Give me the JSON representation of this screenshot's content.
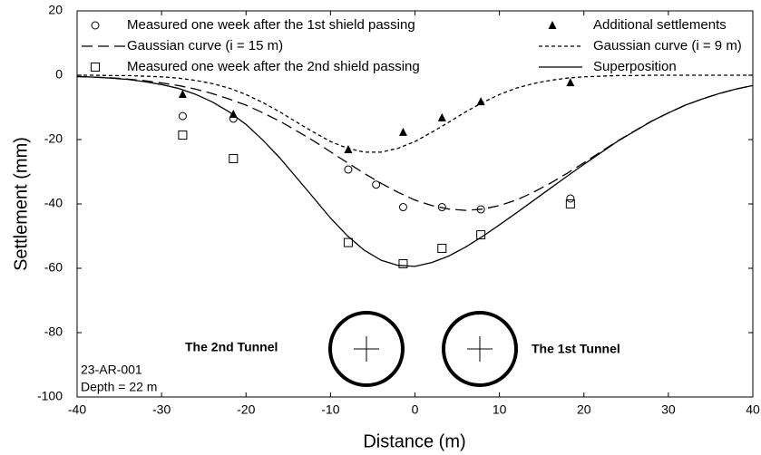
{
  "chart_data": {
    "type": "line",
    "xlabel": "Distance (m)",
    "ylabel": "Settlement (mm)",
    "xlim": [
      -40,
      40
    ],
    "ylim": [
      -100,
      20
    ],
    "xticks": [
      -40,
      -30,
      -20,
      -10,
      0,
      10,
      20,
      30,
      40
    ],
    "yticks": [
      -100,
      -80,
      -60,
      -40,
      -20,
      0,
      20
    ],
    "annotations": [
      "The 2nd Tunnel",
      "The 1st Tunnel",
      "23-AR-001",
      "Depth = 22 m"
    ],
    "series": [
      {
        "name": "Measured one week after the 1st shield passing",
        "color": "#000000",
        "marker": "circle",
        "x": [
          -27.5,
          -21.5,
          -7.9,
          -4.6,
          -1.4,
          3.2,
          7.8,
          18.4
        ],
        "values": [
          -12.7,
          -13.5,
          -29.3,
          -34,
          -41,
          -41,
          -41.7,
          -38.3
        ]
      },
      {
        "name": "Additional settlements",
        "color": "#000000",
        "marker": "triangle",
        "x": [
          -27.5,
          -21.5,
          -7.9,
          -1.4,
          3.2,
          7.8,
          18.4
        ],
        "values": [
          -5.9,
          -12.1,
          -23.1,
          -17.7,
          -13.2,
          -8.2,
          -2.3
        ]
      },
      {
        "name": "Gaussian curve (i = 15 m)",
        "color": "#000000",
        "dash": "long",
        "x": [
          -40,
          -38,
          -36,
          -34,
          -32,
          -30,
          -28,
          -26,
          -24,
          -22,
          -20,
          -18,
          -16,
          -14,
          -12,
          -10,
          -8,
          -6,
          -4,
          -2,
          0,
          2,
          4,
          6,
          8,
          10,
          12,
          14,
          16,
          18,
          20,
          22,
          24,
          26,
          28,
          30,
          32,
          34,
          36,
          38,
          40
        ],
        "values": [
          -0.4,
          -0.6,
          -0.8,
          -1.2,
          -1.7,
          -2.4,
          -3.2,
          -4.3,
          -5.7,
          -7.4,
          -9.3,
          -11.7,
          -14.3,
          -17.3,
          -20.4,
          -23.8,
          -27.2,
          -30.5,
          -33.6,
          -36.4,
          -38.8,
          -40.5,
          -41.6,
          -42,
          -41.6,
          -40.5,
          -38.8,
          -36.4,
          -33.6,
          -30.5,
          -27.2,
          -23.8,
          -20.4,
          -17.3,
          -14.3,
          -11.7,
          -9.3,
          -7.4,
          -5.7,
          -4.3,
          -3.2
        ]
      },
      {
        "name": "Gaussian curve (i = 9 m)",
        "color": "#000000",
        "dash": "short",
        "x": [
          -40,
          -38,
          -36,
          -34,
          -32,
          -30,
          -28,
          -26,
          -24,
          -22,
          -20,
          -18,
          -16,
          -14,
          -12,
          -10,
          -8,
          -6,
          -4,
          -2,
          0,
          2,
          4,
          6,
          8,
          10,
          12,
          14,
          16,
          18,
          20,
          22,
          24,
          26,
          28,
          30,
          32,
          34,
          36,
          38,
          40
        ],
        "values": [
          0,
          0,
          -0.1,
          -0.1,
          -0.3,
          -0.5,
          -0.9,
          -1.6,
          -2.6,
          -4,
          -6,
          -8.5,
          -11.4,
          -14.6,
          -17.7,
          -20.6,
          -22.7,
          -23.9,
          -23.9,
          -22.7,
          -20.6,
          -17.7,
          -14.6,
          -11.4,
          -8.5,
          -6,
          -4,
          -2.6,
          -1.6,
          -0.9,
          -0.5,
          -0.3,
          -0.1,
          -0.1,
          0,
          0,
          0,
          0,
          0,
          0,
          0
        ]
      },
      {
        "name": "Measured one week after the 2nd shield passing",
        "color": "#000000",
        "marker": "square",
        "x": [
          -27.5,
          -21.5,
          -7.9,
          -1.4,
          3.2,
          7.8,
          18.4
        ],
        "values": [
          -18.6,
          -25.9,
          -52,
          -58.6,
          -53.8,
          -49.6,
          -40
        ]
      },
      {
        "name": "Superposition",
        "color": "#000000",
        "dash": "solid",
        "x": [
          -40,
          -38,
          -36,
          -34,
          -32,
          -30,
          -28,
          -26,
          -24,
          -22,
          -20,
          -18,
          -16,
          -14,
          -12,
          -10,
          -8,
          -6,
          -4,
          -2,
          0,
          2,
          4,
          6,
          8,
          10,
          12,
          14,
          16,
          18,
          20,
          22,
          24,
          26,
          28,
          30,
          32,
          34,
          36,
          38,
          40
        ],
        "values": [
          -0.4,
          -0.6,
          -0.9,
          -1.3,
          -2,
          -2.9,
          -4.1,
          -5.9,
          -8.3,
          -11.4,
          -15.3,
          -20.2,
          -25.7,
          -31.9,
          -38.1,
          -44.4,
          -49.9,
          -54.4,
          -57.5,
          -59.1,
          -59.4,
          -58.2,
          -56.2,
          -53.4,
          -50.1,
          -46.5,
          -42.8,
          -39,
          -35.2,
          -31.4,
          -27.7,
          -24.1,
          -20.5,
          -17.4,
          -14.3,
          -11.7,
          -9.3,
          -7.4,
          -5.7,
          -4.3,
          -3.2
        ]
      }
    ]
  }
}
